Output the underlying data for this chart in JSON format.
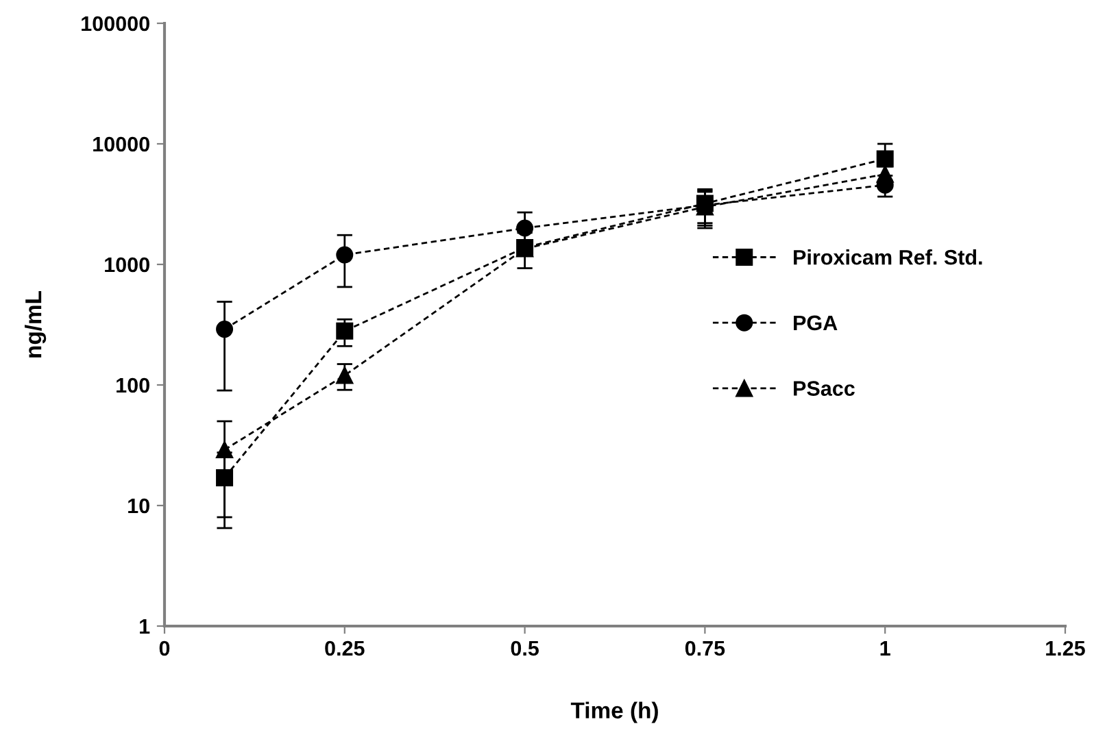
{
  "chart_data": {
    "type": "line",
    "xlabel": "Time (h)",
    "ylabel": "ng/mL",
    "x": [
      0.0833,
      0.25,
      0.5,
      0.75,
      1
    ],
    "series": [
      {
        "name": "Piroxicam Ref. Std.",
        "color": "#000000",
        "marker": "square",
        "values": [
          17,
          280,
          1380,
          3200,
          7500
        ],
        "errors": [
          10.5,
          70,
          450,
          1000,
          2500
        ]
      },
      {
        "name": "PGA",
        "color": "#000000",
        "marker": "circle",
        "values": [
          290,
          1200,
          2000,
          3100,
          4550
        ],
        "errors": [
          200,
          550,
          700,
          1000,
          900
        ]
      },
      {
        "name": "PSacc",
        "color": "#000000",
        "marker": "triangle",
        "values": [
          29,
          120,
          1350,
          3000,
          5600
        ],
        "errors": [
          21,
          29,
          null,
          1000,
          900
        ]
      }
    ],
    "log": "y",
    "xlim": [
      0,
      1.25
    ],
    "xticks": [
      0,
      0.25,
      0.5,
      0.75,
      1,
      1.25
    ],
    "ylim": [
      1,
      100000
    ],
    "yticks": [
      1,
      10,
      100,
      1000,
      10000,
      100000
    ],
    "line_style": "dashed",
    "legend": "right",
    "grid": false
  }
}
